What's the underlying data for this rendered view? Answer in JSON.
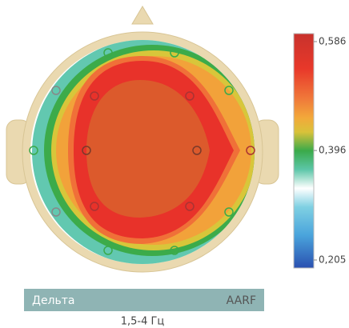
{
  "chart_data": {
    "type": "topomap",
    "band": "Дельта",
    "method": "AARF",
    "frequency": "1,5-4 Гц",
    "clim": [
      0.205,
      0.586
    ],
    "cticks": [
      {
        "value": 0.586,
        "label": "0,586"
      },
      {
        "value": 0.396,
        "label": "0,396"
      },
      {
        "value": 0.205,
        "label": "0,205"
      }
    ]
  }
}
